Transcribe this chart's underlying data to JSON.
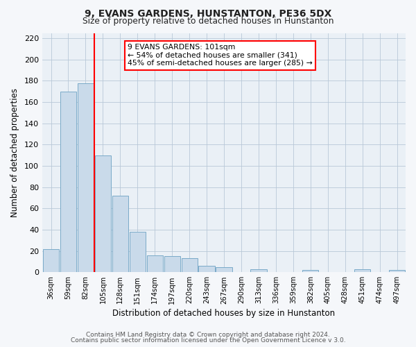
{
  "title1": "9, EVANS GARDENS, HUNSTANTON, PE36 5DX",
  "title2": "Size of property relative to detached houses in Hunstanton",
  "xlabel": "Distribution of detached houses by size in Hunstanton",
  "ylabel": "Number of detached properties",
  "bar_color": "#c9daea",
  "bar_edge_color": "#7aaac8",
  "categories": [
    "36sqm",
    "59sqm",
    "82sqm",
    "105sqm",
    "128sqm",
    "151sqm",
    "174sqm",
    "197sqm",
    "220sqm",
    "243sqm",
    "267sqm",
    "290sqm",
    "313sqm",
    "336sqm",
    "359sqm",
    "382sqm",
    "405sqm",
    "428sqm",
    "451sqm",
    "474sqm",
    "497sqm"
  ],
  "values": [
    22,
    170,
    178,
    110,
    72,
    38,
    16,
    15,
    13,
    6,
    5,
    0,
    3,
    0,
    0,
    2,
    0,
    0,
    3,
    0,
    2
  ],
  "ylim": [
    0,
    225
  ],
  "yticks": [
    0,
    20,
    40,
    60,
    80,
    100,
    120,
    140,
    160,
    180,
    200,
    220
  ],
  "red_line_index": 2.5,
  "annotation_line1": "9 EVANS GARDENS: 101sqm",
  "annotation_line2": "← 54% of detached houses are smaller (341)",
  "annotation_line3": "45% of semi-detached houses are larger (285) →",
  "footer1": "Contains HM Land Registry data © Crown copyright and database right 2024.",
  "footer2": "Contains public sector information licensed under the Open Government Licence v 3.0.",
  "fig_bg_color": "#f5f7fa",
  "ax_bg_color": "#eaf0f6",
  "grid_color": "#b8c8d8"
}
